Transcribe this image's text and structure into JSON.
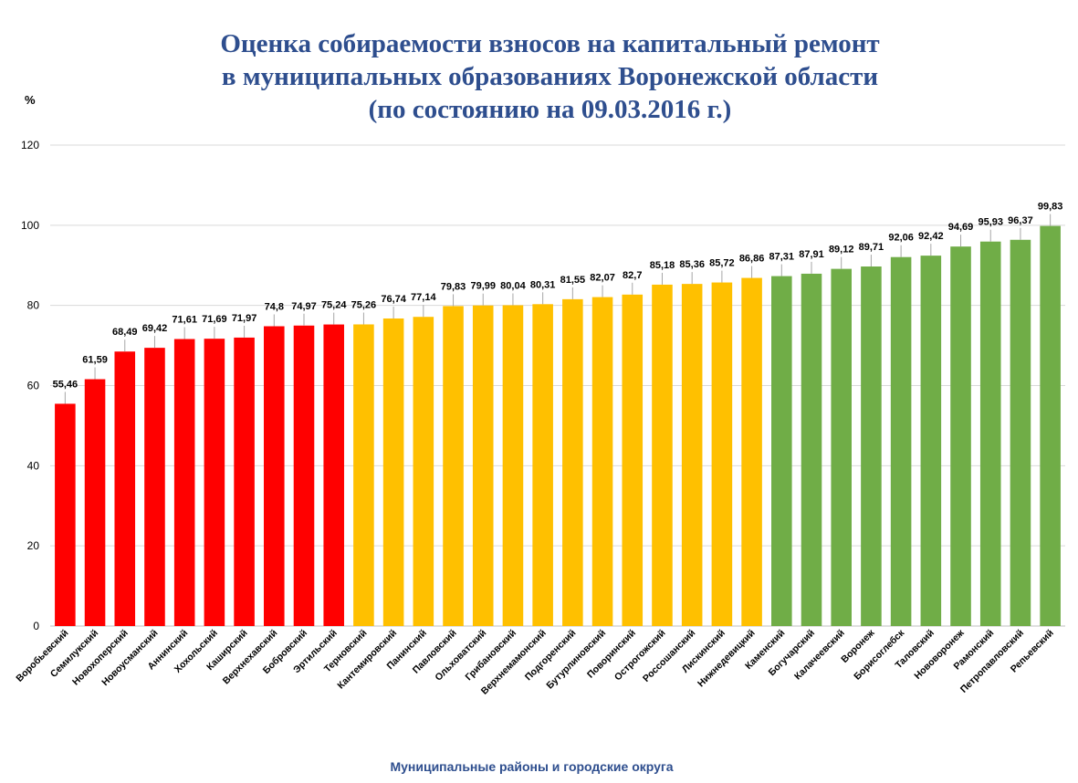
{
  "chart_data": {
    "type": "bar",
    "title_lines": [
      "Оценка собираемости взносов на капитальный ремонт",
      "в муниципальных образованиях Воронежской области",
      "(по состоянию на 09.03.2016 г.)"
    ],
    "ylabel": "%",
    "xlabel": "Муниципальные районы и городские округа",
    "ylim": [
      0,
      120
    ],
    "yticks": [
      0,
      20,
      40,
      60,
      80,
      100,
      120
    ],
    "grid": true,
    "colors": {
      "red": "#FF0000",
      "yellow": "#FFC000",
      "green": "#70AD47"
    },
    "categories": [
      "Воробьевский",
      "Семилукский",
      "Новохоперский",
      "Новоусманский",
      "Аннинский",
      "Хохольский",
      "Каширский",
      "Верхнехавский",
      "Бобровский",
      "Эртильский",
      "Терновский",
      "Кантемировский",
      "Панинский",
      "Павловский",
      "Ольховатский",
      "Грибановский",
      "Верхнемамонский",
      "Подгоренский",
      "Бутурлиновский",
      "Поворинский",
      "Острогожский",
      "Россошанский",
      "Лискинский",
      "Нижнедевицкий",
      "Каменский",
      "Богучарский",
      "Калачеевский",
      "Воронеж",
      "Борисоглебск",
      "Таловский",
      "Нововоронеж",
      "Рамонский",
      "Петропавловский",
      "Репьевский"
    ],
    "values": [
      55.46,
      61.59,
      68.49,
      69.42,
      71.61,
      71.69,
      71.97,
      74.8,
      74.97,
      75.24,
      75.26,
      76.74,
      77.14,
      79.83,
      79.99,
      80.04,
      80.31,
      81.55,
      82.07,
      82.7,
      85.18,
      85.36,
      85.72,
      86.86,
      87.31,
      87.91,
      89.12,
      89.71,
      92.06,
      92.42,
      94.69,
      95.93,
      96.37,
      99.83
    ],
    "value_labels": [
      "55,46",
      "61,59",
      "68,49",
      "69,42",
      "71,61",
      "71,69",
      "71,97",
      "74,8",
      "74,97",
      "75,24",
      "75,26",
      "76,74",
      "77,14",
      "79,83",
      "79,99",
      "80,04",
      "80,31",
      "81,55",
      "82,07",
      "82,7",
      "85,18",
      "85,36",
      "85,72",
      "86,86",
      "87,31",
      "87,91",
      "89,12",
      "89,71",
      "92,06",
      "92,42",
      "94,69",
      "95,93",
      "96,37",
      "99,83"
    ],
    "bar_colors": [
      "red",
      "red",
      "red",
      "red",
      "red",
      "red",
      "red",
      "red",
      "red",
      "red",
      "yellow",
      "yellow",
      "yellow",
      "yellow",
      "yellow",
      "yellow",
      "yellow",
      "yellow",
      "yellow",
      "yellow",
      "yellow",
      "yellow",
      "yellow",
      "yellow",
      "green",
      "green",
      "green",
      "green",
      "green",
      "green",
      "green",
      "green",
      "green",
      "green"
    ]
  }
}
